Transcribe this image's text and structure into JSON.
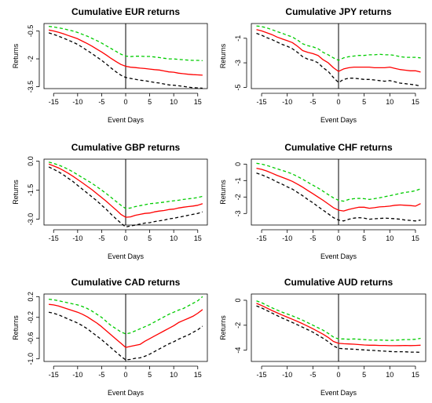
{
  "chart_data": [
    {
      "type": "line",
      "title": "Cumulative EUR returns",
      "xlabel": "Event Days",
      "ylabel": "Returns",
      "xlim": [
        -17,
        17
      ],
      "ylim": [
        -3.6,
        -0.1
      ],
      "xticks": [
        -15,
        -10,
        -5,
        0,
        5,
        10,
        15
      ],
      "yticks": [
        -0.5,
        -2,
        -3.5
      ],
      "ytick_labels": [
        "-0.5",
        "-2",
        "-3.5"
      ],
      "event_line": 0,
      "x": [
        -16,
        -15,
        -14,
        -13,
        -12,
        -11,
        -10,
        -9,
        -8,
        -7,
        -6,
        -5,
        -4,
        -3,
        -2,
        -1,
        0,
        1,
        2,
        3,
        4,
        5,
        6,
        7,
        8,
        9,
        10,
        11,
        12,
        13,
        14,
        15,
        16
      ],
      "series": [
        {
          "color": "#00cc00",
          "dash": true,
          "values": [
            -0.25,
            -0.28,
            -0.33,
            -0.38,
            -0.44,
            -0.5,
            -0.58,
            -0.68,
            -0.78,
            -0.9,
            -1.02,
            -1.15,
            -1.3,
            -1.45,
            -1.6,
            -1.75,
            -1.85,
            -1.88,
            -1.86,
            -1.86,
            -1.87,
            -1.87,
            -1.9,
            -1.93,
            -1.97,
            -2.0,
            -2.0,
            -2.03,
            -2.05,
            -2.07,
            -2.08,
            -2.08,
            -2.1
          ]
        },
        {
          "color": "#ff0000",
          "dash": false,
          "values": [
            -0.45,
            -0.5,
            -0.57,
            -0.65,
            -0.74,
            -0.83,
            -0.92,
            -1.05,
            -1.18,
            -1.32,
            -1.48,
            -1.63,
            -1.8,
            -1.98,
            -2.15,
            -2.3,
            -2.4,
            -2.45,
            -2.47,
            -2.5,
            -2.52,
            -2.55,
            -2.58,
            -2.6,
            -2.65,
            -2.7,
            -2.72,
            -2.77,
            -2.8,
            -2.83,
            -2.85,
            -2.86,
            -2.88
          ]
        },
        {
          "color": "#000000",
          "dash": true,
          "values": [
            -0.6,
            -0.68,
            -0.78,
            -0.88,
            -0.99,
            -1.1,
            -1.22,
            -1.38,
            -1.55,
            -1.72,
            -1.9,
            -2.08,
            -2.28,
            -2.5,
            -2.7,
            -2.88,
            -3.0,
            -3.05,
            -3.1,
            -3.15,
            -3.18,
            -3.22,
            -3.27,
            -3.3,
            -3.35,
            -3.4,
            -3.42,
            -3.45,
            -3.48,
            -3.52,
            -3.55,
            -3.56,
            -3.58
          ]
        }
      ]
    },
    {
      "type": "line",
      "title": "Cumulative JPY returns",
      "xlabel": "Event Days",
      "ylabel": "Returns",
      "xlim": [
        -17,
        17
      ],
      "ylim": [
        -5.1,
        0.2
      ],
      "xticks": [
        -15,
        -10,
        -5,
        0,
        5,
        10,
        15
      ],
      "yticks": [
        -1,
        -3,
        -5
      ],
      "ytick_labels": [
        "-1",
        "-3",
        "-5"
      ],
      "event_line": 0,
      "x": [
        -16,
        -15,
        -14,
        -13,
        -12,
        -11,
        -10,
        -9,
        -8,
        -7,
        -6,
        -5,
        -4,
        -3,
        -2,
        -1,
        0,
        1,
        2,
        3,
        4,
        5,
        6,
        7,
        8,
        9,
        10,
        11,
        12,
        13,
        14,
        15,
        16
      ],
      "series": [
        {
          "color": "#00cc00",
          "dash": true,
          "values": [
            0.0,
            -0.05,
            -0.15,
            -0.3,
            -0.45,
            -0.6,
            -0.75,
            -0.9,
            -1.15,
            -1.45,
            -1.6,
            -1.7,
            -1.85,
            -2.15,
            -2.35,
            -2.6,
            -2.8,
            -2.6,
            -2.5,
            -2.45,
            -2.4,
            -2.4,
            -2.35,
            -2.35,
            -2.3,
            -2.35,
            -2.35,
            -2.4,
            -2.5,
            -2.55,
            -2.55,
            -2.55,
            -2.6
          ]
        },
        {
          "color": "#ff0000",
          "dash": false,
          "values": [
            -0.3,
            -0.4,
            -0.55,
            -0.7,
            -0.9,
            -1.05,
            -1.2,
            -1.35,
            -1.65,
            -2.0,
            -2.15,
            -2.25,
            -2.4,
            -2.75,
            -3.0,
            -3.4,
            -3.7,
            -3.5,
            -3.4,
            -3.35,
            -3.35,
            -3.35,
            -3.35,
            -3.4,
            -3.4,
            -3.4,
            -3.35,
            -3.45,
            -3.55,
            -3.6,
            -3.65,
            -3.65,
            -3.75
          ]
        },
        {
          "color": "#000000",
          "dash": true,
          "values": [
            -0.6,
            -0.75,
            -0.95,
            -1.1,
            -1.3,
            -1.5,
            -1.65,
            -1.85,
            -2.15,
            -2.5,
            -2.7,
            -2.8,
            -3.0,
            -3.4,
            -3.7,
            -4.2,
            -4.6,
            -4.35,
            -4.25,
            -4.25,
            -4.3,
            -4.35,
            -4.35,
            -4.4,
            -4.45,
            -4.5,
            -4.45,
            -4.55,
            -4.65,
            -4.7,
            -4.75,
            -4.8,
            -4.9
          ]
        }
      ]
    },
    {
      "type": "line",
      "title": "Cumulative GBP returns",
      "xlabel": "Event Days",
      "ylabel": "Returns",
      "xlim": [
        -17,
        17
      ],
      "ylim": [
        -3.3,
        0.1
      ],
      "xticks": [
        -15,
        -10,
        -5,
        0,
        5,
        10,
        15
      ],
      "yticks": [
        0.0,
        -1.5,
        -3.0
      ],
      "ytick_labels": [
        "0.0",
        "-1.5",
        "-3.0"
      ],
      "event_line": 0,
      "x": [
        -16,
        -15,
        -14,
        -13,
        -12,
        -11,
        -10,
        -9,
        -8,
        -7,
        -6,
        -5,
        -4,
        -3,
        -2,
        -1,
        0,
        1,
        2,
        3,
        4,
        5,
        6,
        7,
        8,
        9,
        10,
        11,
        12,
        13,
        14,
        15,
        16
      ],
      "series": [
        {
          "color": "#00cc00",
          "dash": true,
          "values": [
            -0.05,
            -0.12,
            -0.2,
            -0.3,
            -0.42,
            -0.55,
            -0.7,
            -0.85,
            -1.0,
            -1.15,
            -1.32,
            -1.5,
            -1.68,
            -1.88,
            -2.08,
            -2.28,
            -2.45,
            -2.42,
            -2.35,
            -2.3,
            -2.25,
            -2.2,
            -2.18,
            -2.15,
            -2.12,
            -2.08,
            -2.05,
            -2.02,
            -1.98,
            -1.95,
            -1.92,
            -1.88,
            -1.82
          ]
        },
        {
          "color": "#ff0000",
          "dash": false,
          "values": [
            -0.15,
            -0.25,
            -0.35,
            -0.48,
            -0.62,
            -0.78,
            -0.95,
            -1.12,
            -1.3,
            -1.48,
            -1.68,
            -1.88,
            -2.08,
            -2.3,
            -2.52,
            -2.75,
            -2.9,
            -2.88,
            -2.8,
            -2.75,
            -2.7,
            -2.68,
            -2.62,
            -2.58,
            -2.55,
            -2.5,
            -2.48,
            -2.42,
            -2.38,
            -2.35,
            -2.32,
            -2.28,
            -2.2
          ]
        },
        {
          "color": "#000000",
          "dash": true,
          "values": [
            -0.3,
            -0.42,
            -0.55,
            -0.7,
            -0.88,
            -1.05,
            -1.25,
            -1.45,
            -1.65,
            -1.85,
            -2.05,
            -2.28,
            -2.5,
            -2.75,
            -2.98,
            -3.2,
            -3.4,
            -3.35,
            -3.3,
            -3.25,
            -3.2,
            -3.18,
            -3.12,
            -3.08,
            -3.05,
            -2.98,
            -2.95,
            -2.9,
            -2.85,
            -2.8,
            -2.75,
            -2.7,
            -2.62
          ]
        }
      ]
    },
    {
      "type": "line",
      "title": "Cumulative CHF returns",
      "xlabel": "Event Days",
      "ylabel": "Returns",
      "xlim": [
        -17,
        17
      ],
      "ylim": [
        -3.7,
        0.3
      ],
      "xticks": [
        -15,
        -10,
        -5,
        0,
        5,
        10,
        15
      ],
      "yticks": [
        0,
        -1,
        -2,
        -3
      ],
      "ytick_labels": [
        "0",
        "-1",
        "-2",
        "-3"
      ],
      "event_line": 0,
      "x": [
        -16,
        -15,
        -14,
        -13,
        -12,
        -11,
        -10,
        -9,
        -8,
        -7,
        -6,
        -5,
        -4,
        -3,
        -2,
        -1,
        0,
        1,
        2,
        3,
        4,
        5,
        6,
        7,
        8,
        9,
        10,
        11,
        12,
        13,
        14,
        15,
        16
      ],
      "series": [
        {
          "color": "#00cc00",
          "dash": true,
          "values": [
            0.05,
            0.0,
            -0.08,
            -0.18,
            -0.28,
            -0.38,
            -0.48,
            -0.6,
            -0.75,
            -0.92,
            -1.1,
            -1.28,
            -1.45,
            -1.65,
            -1.85,
            -2.05,
            -2.2,
            -2.25,
            -2.15,
            -2.1,
            -2.08,
            -2.1,
            -2.15,
            -2.1,
            -2.05,
            -1.98,
            -1.92,
            -1.85,
            -1.78,
            -1.72,
            -1.68,
            -1.62,
            -1.5
          ]
        },
        {
          "color": "#ff0000",
          "dash": false,
          "values": [
            -0.25,
            -0.32,
            -0.42,
            -0.55,
            -0.68,
            -0.8,
            -0.92,
            -1.05,
            -1.22,
            -1.4,
            -1.6,
            -1.8,
            -2.0,
            -2.2,
            -2.42,
            -2.65,
            -2.8,
            -2.85,
            -2.75,
            -2.68,
            -2.62,
            -2.62,
            -2.68,
            -2.65,
            -2.6,
            -2.58,
            -2.55,
            -2.5,
            -2.48,
            -2.5,
            -2.52,
            -2.55,
            -2.4
          ]
        },
        {
          "color": "#000000",
          "dash": true,
          "values": [
            -0.55,
            -0.65,
            -0.78,
            -0.92,
            -1.08,
            -1.22,
            -1.38,
            -1.52,
            -1.72,
            -1.92,
            -2.15,
            -2.35,
            -2.58,
            -2.8,
            -3.02,
            -3.25,
            -3.4,
            -3.45,
            -3.35,
            -3.28,
            -3.25,
            -3.28,
            -3.35,
            -3.32,
            -3.3,
            -3.28,
            -3.3,
            -3.32,
            -3.35,
            -3.4,
            -3.42,
            -3.45,
            -3.4
          ]
        }
      ]
    },
    {
      "type": "line",
      "title": "Cumulative CAD returns",
      "xlabel": "Event Days",
      "ylabel": "Returns",
      "xlim": [
        -17,
        17
      ],
      "ylim": [
        -1.05,
        0.25
      ],
      "xticks": [
        -15,
        -10,
        -5,
        0,
        5,
        10,
        15
      ],
      "yticks": [
        0.2,
        -0.2,
        -0.6,
        -1.0
      ],
      "ytick_labels": [
        "0.2",
        "-0.2",
        "-0.6",
        "-1.0"
      ],
      "event_line": 0,
      "x": [
        -16,
        -15,
        -14,
        -13,
        -12,
        -11,
        -10,
        -9,
        -8,
        -7,
        -6,
        -5,
        -4,
        -3,
        -2,
        -1,
        0,
        1,
        2,
        3,
        4,
        5,
        6,
        7,
        8,
        9,
        10,
        11,
        12,
        13,
        14,
        15,
        16
      ],
      "series": [
        {
          "color": "#00cc00",
          "dash": true,
          "values": [
            0.15,
            0.14,
            0.12,
            0.1,
            0.08,
            0.06,
            0.04,
            0.01,
            -0.03,
            -0.08,
            -0.14,
            -0.2,
            -0.28,
            -0.36,
            -0.42,
            -0.48,
            -0.52,
            -0.5,
            -0.46,
            -0.42,
            -0.38,
            -0.34,
            -0.29,
            -0.24,
            -0.19,
            -0.14,
            -0.1,
            -0.06,
            -0.03,
            0.02,
            0.07,
            0.12,
            0.2
          ]
        },
        {
          "color": "#ff0000",
          "dash": false,
          "values": [
            0.05,
            0.04,
            0.02,
            -0.01,
            -0.04,
            -0.07,
            -0.1,
            -0.14,
            -0.19,
            -0.25,
            -0.31,
            -0.38,
            -0.46,
            -0.54,
            -0.62,
            -0.7,
            -0.78,
            -0.76,
            -0.74,
            -0.72,
            -0.66,
            -0.61,
            -0.56,
            -0.51,
            -0.46,
            -0.41,
            -0.36,
            -0.3,
            -0.26,
            -0.22,
            -0.18,
            -0.12,
            -0.05
          ]
        },
        {
          "color": "#000000",
          "dash": true,
          "values": [
            -0.1,
            -0.12,
            -0.15,
            -0.19,
            -0.23,
            -0.27,
            -0.31,
            -0.36,
            -0.42,
            -0.49,
            -0.56,
            -0.63,
            -0.71,
            -0.79,
            -0.87,
            -0.95,
            -1.02,
            -1.01,
            -0.99,
            -0.98,
            -0.95,
            -0.91,
            -0.86,
            -0.81,
            -0.76,
            -0.71,
            -0.67,
            -0.62,
            -0.58,
            -0.54,
            -0.49,
            -0.44,
            -0.37
          ]
        }
      ]
    },
    {
      "type": "line",
      "title": "Cumulative AUD returns",
      "xlabel": "Event Days",
      "ylabel": "Returns",
      "xlim": [
        -17,
        17
      ],
      "ylim": [
        -4.9,
        0.5
      ],
      "xticks": [
        -15,
        -10,
        -5,
        0,
        5,
        10,
        15
      ],
      "yticks": [
        0,
        -2,
        -4
      ],
      "ytick_labels": [
        "0",
        "-2",
        "-4"
      ],
      "event_line": 0,
      "x": [
        -16,
        -15,
        -14,
        -13,
        -12,
        -11,
        -10,
        -9,
        -8,
        -7,
        -6,
        -5,
        -4,
        -3,
        -2,
        -1,
        0,
        1,
        2,
        3,
        4,
        5,
        6,
        7,
        8,
        9,
        10,
        11,
        12,
        13,
        14,
        15,
        16
      ],
      "series": [
        {
          "color": "#00cc00",
          "dash": true,
          "values": [
            -0.05,
            -0.2,
            -0.4,
            -0.6,
            -0.78,
            -0.95,
            -1.1,
            -1.25,
            -1.42,
            -1.6,
            -1.8,
            -2.0,
            -2.2,
            -2.4,
            -2.65,
            -2.95,
            -3.1,
            -3.1,
            -3.12,
            -3.1,
            -3.12,
            -3.15,
            -3.18,
            -3.2,
            -3.18,
            -3.2,
            -3.22,
            -3.2,
            -3.18,
            -3.15,
            -3.15,
            -3.12,
            -3.05
          ]
        },
        {
          "color": "#ff0000",
          "dash": false,
          "values": [
            -0.25,
            -0.42,
            -0.62,
            -0.82,
            -1.0,
            -1.18,
            -1.35,
            -1.52,
            -1.7,
            -1.88,
            -2.08,
            -2.28,
            -2.5,
            -2.72,
            -2.98,
            -3.3,
            -3.45,
            -3.48,
            -3.5,
            -3.52,
            -3.55,
            -3.58,
            -3.6,
            -3.6,
            -3.62,
            -3.62,
            -3.64,
            -3.64,
            -3.63,
            -3.62,
            -3.63,
            -3.62,
            -3.6
          ]
        },
        {
          "color": "#000000",
          "dash": true,
          "values": [
            -0.45,
            -0.62,
            -0.82,
            -1.02,
            -1.22,
            -1.42,
            -1.6,
            -1.78,
            -1.97,
            -2.16,
            -2.36,
            -2.56,
            -2.8,
            -3.04,
            -3.32,
            -3.65,
            -3.85,
            -3.88,
            -3.9,
            -3.92,
            -3.95,
            -3.98,
            -4.0,
            -4.02,
            -4.05,
            -4.08,
            -4.1,
            -4.12,
            -4.12,
            -4.13,
            -4.15,
            -4.15,
            -4.17
          ]
        }
      ]
    }
  ]
}
